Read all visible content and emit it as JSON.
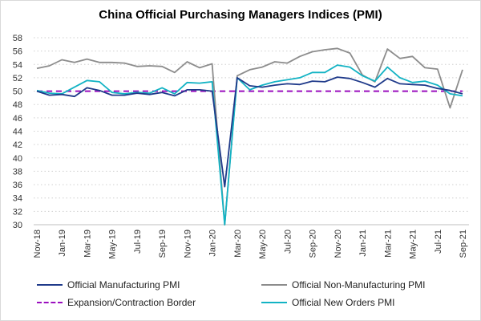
{
  "chart_data": {
    "type": "line",
    "title": "China Official Purchasing Managers Indices (PMI)",
    "xlabel": "",
    "ylabel": "",
    "ylim": [
      30,
      58
    ],
    "yticks": [
      30,
      32,
      34,
      36,
      38,
      40,
      42,
      44,
      46,
      48,
      50,
      52,
      54,
      56,
      58
    ],
    "grid": "horizontal dotted",
    "legend_position": "bottom",
    "x": [
      "Nov-18",
      "Dec-18",
      "Jan-19",
      "Feb-19",
      "Mar-19",
      "Apr-19",
      "May-19",
      "Jun-19",
      "Jul-19",
      "Aug-19",
      "Sep-19",
      "Oct-19",
      "Nov-19",
      "Dec-19",
      "Jan-20",
      "Feb-20",
      "Mar-20",
      "Apr-20",
      "May-20",
      "Jun-20",
      "Jul-20",
      "Aug-20",
      "Sep-20",
      "Oct-20",
      "Nov-20",
      "Dec-20",
      "Jan-21",
      "Feb-21",
      "Mar-21",
      "Apr-21",
      "May-21",
      "Jun-21",
      "Jul-21",
      "Aug-21",
      "Sep-21"
    ],
    "xtick_labels": [
      "Nov-18",
      "Jan-19",
      "Mar-19",
      "May-19",
      "Jul-19",
      "Sep-19",
      "Nov-19",
      "Jan-20",
      "Mar-20",
      "May-20",
      "Jul-20",
      "Sep-20",
      "Nov-20",
      "Jan-21",
      "Mar-21",
      "May-21",
      "Jul-21",
      "Sep-21"
    ],
    "series": [
      {
        "name": "Official Manufacturing PMI",
        "color": "#1f3a8a",
        "dashed": false,
        "values": [
          50.0,
          49.4,
          49.5,
          49.2,
          50.5,
          50.1,
          49.4,
          49.4,
          49.7,
          49.5,
          49.8,
          49.3,
          50.2,
          50.2,
          50.0,
          35.7,
          52.0,
          50.8,
          50.6,
          50.9,
          51.1,
          51.0,
          51.5,
          51.4,
          52.1,
          51.9,
          51.3,
          50.6,
          51.9,
          51.1,
          51.0,
          50.9,
          50.4,
          50.1,
          49.6
        ]
      },
      {
        "name": "Official Non-Manufacturing PMI",
        "color": "#8c8c8c",
        "dashed": false,
        "values": [
          53.4,
          53.8,
          54.7,
          54.3,
          54.8,
          54.3,
          54.3,
          54.2,
          53.7,
          53.8,
          53.7,
          52.8,
          54.4,
          53.5,
          54.1,
          29.6,
          52.3,
          53.2,
          53.6,
          54.4,
          54.2,
          55.2,
          55.9,
          56.2,
          56.4,
          55.7,
          52.4,
          51.4,
          56.3,
          54.9,
          55.2,
          53.5,
          53.3,
          47.5,
          53.2
        ]
      },
      {
        "name": "Expansion/Contraction Border",
        "color": "#9b0fbf",
        "dashed": true,
        "values": [
          50,
          50,
          50,
          50,
          50,
          50,
          50,
          50,
          50,
          50,
          50,
          50,
          50,
          50,
          50,
          50,
          50,
          50,
          50,
          50,
          50,
          50,
          50,
          50,
          50,
          50,
          50,
          50,
          50,
          50,
          50,
          50,
          50,
          50,
          50
        ]
      },
      {
        "name": "Official New Orders PMI",
        "color": "#13b3c4",
        "dashed": false,
        "values": [
          50.1,
          49.7,
          49.6,
          50.6,
          51.6,
          51.4,
          49.8,
          49.6,
          49.8,
          49.7,
          50.5,
          49.6,
          51.3,
          51.2,
          51.4,
          29.3,
          52.0,
          50.2,
          50.9,
          51.4,
          51.7,
          52.0,
          52.8,
          52.8,
          53.9,
          53.6,
          52.3,
          51.5,
          53.6,
          52.0,
          51.3,
          51.5,
          50.9,
          49.6,
          49.3
        ]
      }
    ]
  }
}
